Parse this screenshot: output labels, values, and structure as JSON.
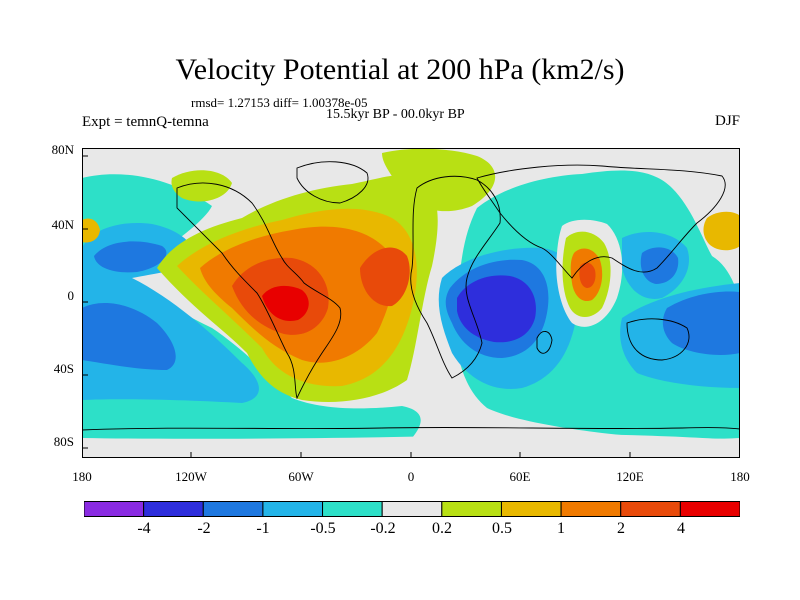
{
  "title": "Velocity Potential at 200 hPa (km2/s)",
  "stats_line": "rmsd= 1.27153 diff= 1.00378e-05",
  "period": "15.5kyr BP - 00.0kyr BP",
  "experiment": "Expt = temnQ-temna",
  "season": "DJF",
  "lat_ticks": [
    "80N",
    "40N",
    "0",
    "40S",
    "80S"
  ],
  "lon_ticks": [
    "180",
    "120W",
    "60W",
    "0",
    "60E",
    "120E",
    "180"
  ],
  "colorbar": {
    "colors": [
      "#8a2be2",
      "#2e2edc",
      "#1e78e0",
      "#23b4e8",
      "#2de0c8",
      "#e8e8e8",
      "#b8e014",
      "#e8b800",
      "#f07a00",
      "#e84a0a",
      "#e80000"
    ],
    "labels": [
      "-4",
      "-2",
      "-1",
      "-0.5",
      "-0.2",
      "0.2",
      "0.5",
      "1",
      "2",
      "4"
    ]
  }
}
